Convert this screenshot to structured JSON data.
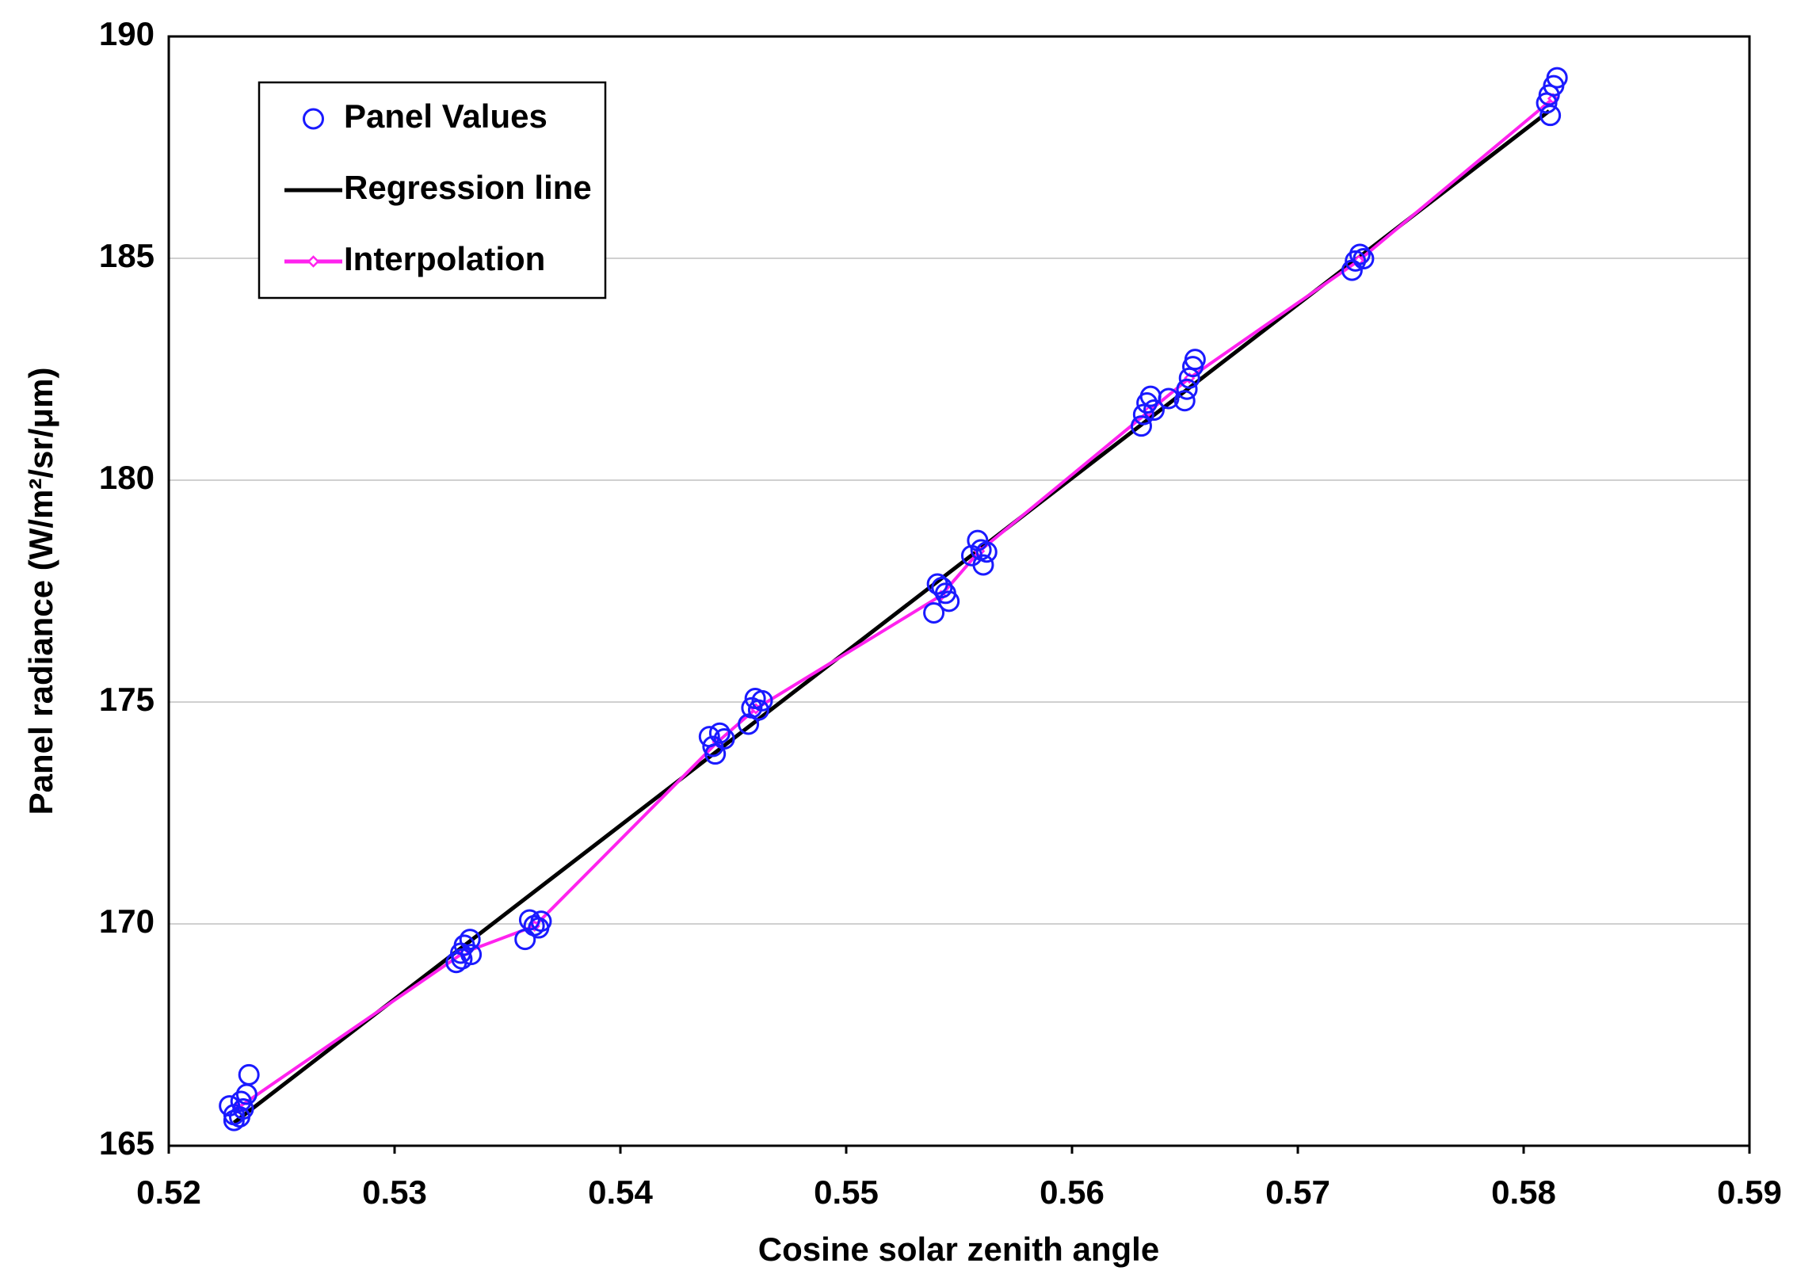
{
  "chart_data": {
    "type": "scatter",
    "xlabel": "Cosine solar zenith angle",
    "ylabel": "Panel radiance (W/m²/sr/μm)",
    "xlim": [
      0.52,
      0.59
    ],
    "xticks": [
      0.52,
      0.53,
      0.54,
      0.55,
      0.56,
      0.57,
      0.58,
      0.59
    ],
    "ylim": [
      165,
      190
    ],
    "yticks": [
      165,
      170,
      175,
      180,
      185,
      190
    ],
    "grid": true,
    "legend": "upper left",
    "series": [
      {
        "name": "Panel Values",
        "color": "#1a1aff",
        "mode": "markers",
        "x": [
          0.52269,
          0.52289,
          0.52314,
          0.5233,
          0.52345,
          0.52355,
          0.52289,
          0.5232,
          0.53273,
          0.53293,
          0.53309,
          0.53334,
          0.53339,
          0.53298,
          0.53578,
          0.53598,
          0.53618,
          0.53638,
          0.53649,
          0.54394,
          0.5442,
          0.5444,
          0.5446,
          0.5441,
          0.54567,
          0.54582,
          0.54597,
          0.54612,
          0.54628,
          0.55388,
          0.55404,
          0.55424,
          0.5544,
          0.55455,
          0.55556,
          0.55582,
          0.55597,
          0.55607,
          0.55622,
          0.56307,
          0.56317,
          0.56332,
          0.56348,
          0.56363,
          0.56428,
          0.56499,
          0.56509,
          0.5652,
          0.56535,
          0.56545,
          0.5724,
          0.57255,
          0.57275,
          0.57291,
          0.58118,
          0.58102,
          0.58113,
          0.58133,
          0.58148
        ],
        "values": [
          165.9,
          165.57,
          165.65,
          165.83,
          166.16,
          166.6,
          165.7,
          166.0,
          169.13,
          169.34,
          169.52,
          169.65,
          169.31,
          169.21,
          169.65,
          170.09,
          169.96,
          169.91,
          170.06,
          174.22,
          173.83,
          174.3,
          174.17,
          174.0,
          174.5,
          174.87,
          175.08,
          174.82,
          175.03,
          177.01,
          177.66,
          177.58,
          177.45,
          177.27,
          178.3,
          178.64,
          178.43,
          178.09,
          178.38,
          181.22,
          181.48,
          181.74,
          181.89,
          181.58,
          181.84,
          181.79,
          182.05,
          182.3,
          182.56,
          182.72,
          184.73,
          184.94,
          185.09,
          184.99,
          188.22,
          188.5,
          188.68,
          188.89,
          189.07
        ]
      },
      {
        "name": "Regression line",
        "color": "#000000",
        "mode": "line",
        "x": [
          0.52289,
          0.58113
        ],
        "values": [
          165.52,
          188.32
        ]
      },
      {
        "name": "Interpolation",
        "color": "#ff22ee",
        "mode": "line+markers",
        "x": [
          0.52305,
          0.53305,
          0.5362,
          0.5443,
          0.546,
          0.5542,
          0.5559,
          0.5634,
          0.5652,
          0.5727,
          0.5813
        ],
        "values": [
          165.85,
          169.35,
          169.95,
          174.1,
          174.85,
          177.4,
          178.4,
          181.55,
          182.3,
          184.95,
          188.6
        ]
      }
    ]
  }
}
